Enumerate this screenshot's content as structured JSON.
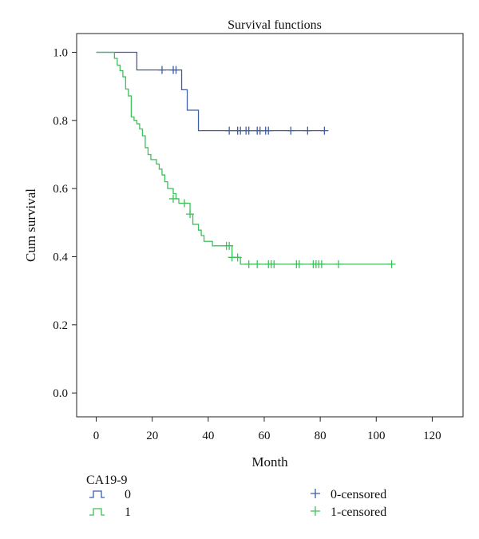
{
  "chart_data": {
    "type": "line",
    "title": "Survival functions",
    "xlabel": "Month",
    "ylabel": "Cum survival",
    "xlim": [
      -7,
      131
    ],
    "ylim": [
      -0.07,
      1.055
    ],
    "x_ticks": [
      0,
      20,
      40,
      60,
      80,
      100,
      120
    ],
    "y_ticks": [
      0.0,
      0.2,
      0.4,
      0.6,
      0.8,
      1.0
    ],
    "grid": false,
    "legend_title": "CA19-9",
    "legend_placement": "bottom",
    "series": [
      {
        "name": "0",
        "color": "#3f5ea6",
        "steps": [
          [
            0,
            1.0
          ],
          [
            14.5,
            0.948
          ],
          [
            30.5,
            0.89
          ],
          [
            32.5,
            0.83
          ],
          [
            36.5,
            0.77
          ],
          [
            81.5,
            0.77
          ]
        ],
        "censored_name": "0-censored",
        "censored": [
          [
            23.5,
            0.948
          ],
          [
            27.5,
            0.948
          ],
          [
            28.5,
            0.948
          ],
          [
            47.5,
            0.77
          ],
          [
            50.5,
            0.77
          ],
          [
            51.5,
            0.77
          ],
          [
            53.5,
            0.77
          ],
          [
            54.5,
            0.77
          ],
          [
            57.5,
            0.77
          ],
          [
            58.5,
            0.77
          ],
          [
            60.5,
            0.77
          ],
          [
            61.5,
            0.77
          ],
          [
            69.5,
            0.77
          ],
          [
            75.5,
            0.77
          ],
          [
            81.5,
            0.77
          ]
        ]
      },
      {
        "name": "1",
        "color": "#3ec05a",
        "steps": [
          [
            0,
            1.0
          ],
          [
            6.5,
            0.982
          ],
          [
            7.5,
            0.962
          ],
          [
            8.5,
            0.946
          ],
          [
            9.5,
            0.928
          ],
          [
            10.5,
            0.892
          ],
          [
            11.5,
            0.872
          ],
          [
            12.5,
            0.81
          ],
          [
            13.5,
            0.8
          ],
          [
            14.5,
            0.79
          ],
          [
            15.5,
            0.775
          ],
          [
            16.5,
            0.755
          ],
          [
            17.5,
            0.72
          ],
          [
            18.5,
            0.7
          ],
          [
            19.5,
            0.685
          ],
          [
            21.5,
            0.672
          ],
          [
            22.5,
            0.657
          ],
          [
            23.5,
            0.64
          ],
          [
            24.5,
            0.62
          ],
          [
            25.5,
            0.6
          ],
          [
            27.5,
            0.585
          ],
          [
            28.5,
            0.57
          ],
          [
            29.5,
            0.557
          ],
          [
            33.5,
            0.525
          ],
          [
            34.5,
            0.495
          ],
          [
            36.5,
            0.478
          ],
          [
            37.5,
            0.462
          ],
          [
            38.5,
            0.445
          ],
          [
            41.5,
            0.432
          ],
          [
            48.5,
            0.398
          ],
          [
            51.5,
            0.378
          ],
          [
            105.5,
            0.378
          ]
        ],
        "censored_name": "1-censored",
        "censored": [
          [
            27.5,
            0.57
          ],
          [
            31.5,
            0.557
          ],
          [
            33.5,
            0.525
          ],
          [
            46.5,
            0.432
          ],
          [
            47.5,
            0.432
          ],
          [
            48.5,
            0.398
          ],
          [
            50.5,
            0.398
          ],
          [
            54.5,
            0.378
          ],
          [
            57.5,
            0.378
          ],
          [
            61.5,
            0.378
          ],
          [
            62.5,
            0.378
          ],
          [
            63.5,
            0.378
          ],
          [
            71.5,
            0.378
          ],
          [
            72.5,
            0.378
          ],
          [
            77.5,
            0.378
          ],
          [
            78.5,
            0.378
          ],
          [
            79.5,
            0.378
          ],
          [
            80.5,
            0.378
          ],
          [
            86.5,
            0.378
          ],
          [
            105.5,
            0.378
          ]
        ]
      }
    ]
  }
}
